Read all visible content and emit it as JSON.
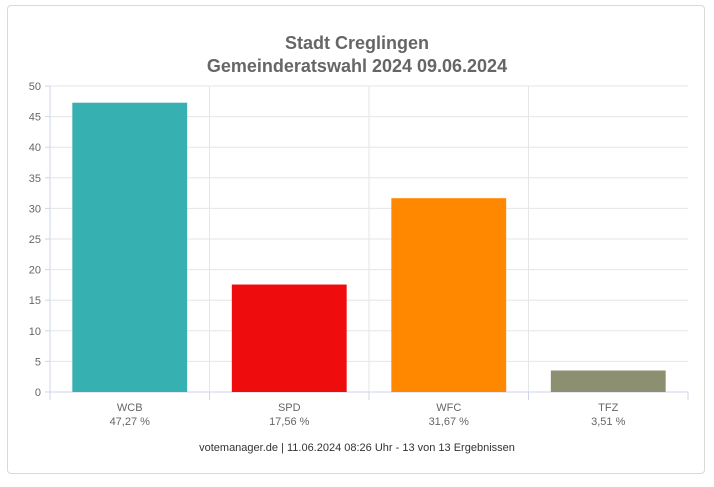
{
  "chart_data": {
    "type": "bar",
    "title": "Stadt Creglingen",
    "subtitle": "Gemeinderatswahl 2024 09.06.2024",
    "categories": [
      "WCB",
      "SPD",
      "WFC",
      "TFZ"
    ],
    "values": [
      47.27,
      17.56,
      31.67,
      3.51
    ],
    "value_labels": [
      "47,27 %",
      "17,56 %",
      "31,67 %",
      "3,51 %"
    ],
    "colors": [
      "#36b0b0",
      "#ee0c0c",
      "#ff8800",
      "#8c8f70"
    ],
    "ylim": [
      0,
      50
    ],
    "yticks": [
      0,
      5,
      10,
      15,
      20,
      25,
      30,
      35,
      40,
      45,
      50
    ],
    "grid": true,
    "xlabel": "",
    "ylabel": ""
  },
  "footer": "votemanager.de | 11.06.2024 08:26 Uhr - 13 von 13 Ergebnissen"
}
